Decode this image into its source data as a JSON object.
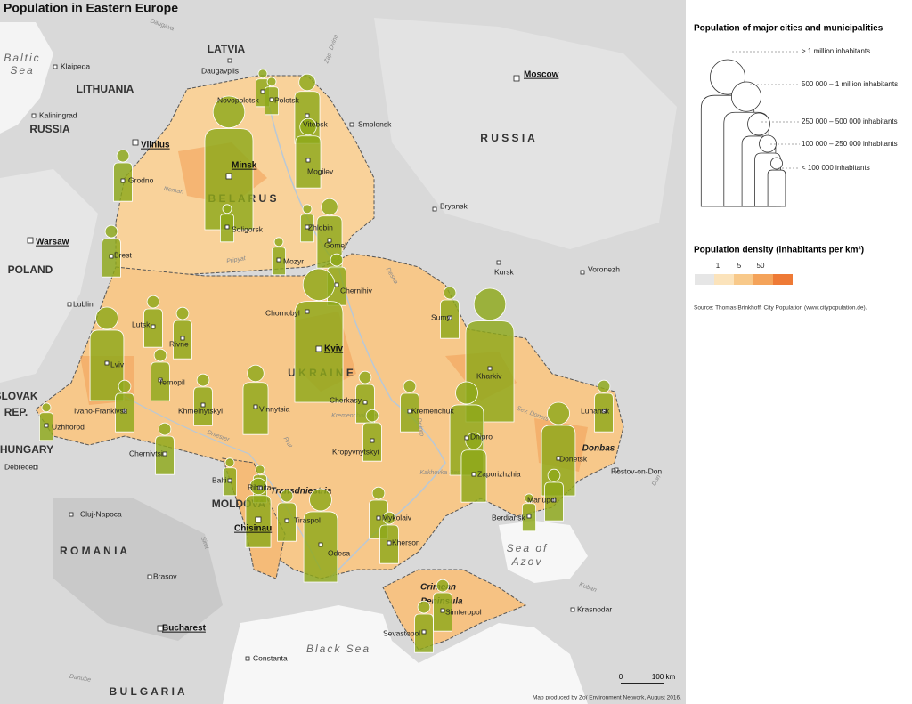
{
  "title": "Population in Eastern Europe",
  "legend": {
    "cities_title": "Population of major cities and municipalities",
    "classes": [
      "> 1 million inhabitants",
      "500 000 – 1 million inhabitants",
      "250 000 – 500 000 inhabitants",
      "100 000 – 250 000 inhabitants",
      "< 100 000 inhabitants"
    ],
    "density_title": "Population density (inhabitants per km²)",
    "density_breaks": [
      1,
      5,
      50
    ],
    "source": "Source: Thomas Brinkhoff: City Population (www.citypopulation.de)."
  },
  "countries": [
    "LATVIA",
    "LITHUANIA",
    "RUSSIA",
    "R U S S I A",
    "B E L A R U S",
    "POLAND",
    "U K R A I N E",
    "SLOVAK",
    "REP.",
    "HUNGARY",
    "R O M A N I A",
    "MOLDOVA",
    "B U L G A R I A"
  ],
  "regions": [
    "Transdniestria",
    "Donbas",
    "Crimean",
    "Peninsula"
  ],
  "seas": [
    "Baltic",
    "Sea",
    "Black Sea",
    "Sea of",
    "Azov"
  ],
  "rivers": [
    "Daugava",
    "Zap. Dvina",
    "Neman",
    "Pripyat",
    "Desna",
    "Dnipro",
    "Dniester",
    "Prut",
    "Siret",
    "Danube",
    "Sev. Donets",
    "Kremenchuk Res.",
    "Kakhovka Res.",
    "Don",
    "Kuban"
  ],
  "cities": [
    "Klaipeda",
    "Daugavpils",
    "Kaliningrad",
    "Vilnius",
    "Grodno",
    "Novopolotsk",
    "Polotsk",
    "Vitebsk",
    "Smolensk",
    "Moscow",
    "Minsk",
    "Mogilev",
    "Bryansk",
    "Warsaw",
    "Soligorsk",
    "Zhlobin",
    "Gomel",
    "Brest",
    "Mozyr",
    "Kursk",
    "Voronezh",
    "Lublin",
    "Chernihiv",
    "Chornobyl",
    "Sumy",
    "Lutsk",
    "Rivne",
    "Kyiv",
    "Kharkiv",
    "Lviv",
    "Ternopil",
    "Khmelnytskyi",
    "Vinnytsia",
    "Cherkasy",
    "Kremenchuk",
    "Ivano-Frankivsk",
    "Uzhhorod",
    "Chernivtsi",
    "Kropyvnytskyi",
    "Dnipro",
    "Luhansk",
    "Donetsk",
    "Zaporizhzhia",
    "Rostov-on-Don",
    "Debrecen",
    "Balti",
    "Ribnita",
    "Mariupol",
    "Berdiansk",
    "Cluj-Napoca",
    "Chisinau",
    "Tiraspol",
    "Mykolaiv",
    "Kherson",
    "Odesa",
    "Brasov",
    "Sevastopol",
    "Simferopol",
    "Krasnodar",
    "Bucharest",
    "Constanta"
  ],
  "scale": {
    "ticks": [
      0,
      {
        "value": 100,
        "label": "100 km"
      }
    ]
  },
  "credit": "Map produced by Zoï Environment Network, August 2016."
}
